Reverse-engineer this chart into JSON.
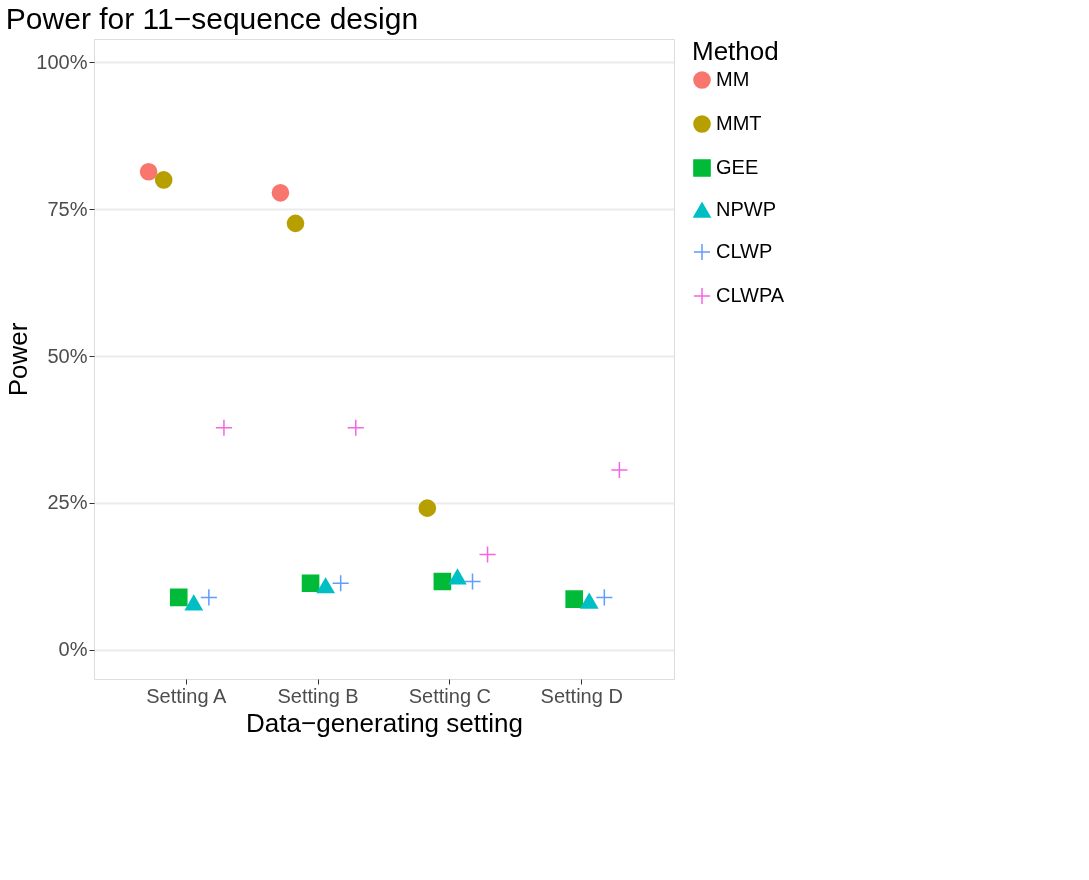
{
  "chart_data": {
    "type": "scatter",
    "title": "Power for 11−sequence design",
    "xlabel": "Data−generating setting",
    "ylabel": "Power",
    "legend_title": "Method",
    "legend": "right",
    "grid": "y",
    "categories": [
      "Setting A",
      "Setting B",
      "Setting C",
      "Setting D"
    ],
    "ylim": [
      -5,
      104
    ],
    "yticks": [
      {
        "value": 0,
        "label": "0%"
      },
      {
        "value": 25,
        "label": "25%"
      },
      {
        "value": 50,
        "label": "50%"
      },
      {
        "value": 75,
        "label": "75%"
      },
      {
        "value": 100,
        "label": "100%"
      }
    ],
    "series": [
      {
        "name": "MM",
        "color": "#f8766d",
        "marker": "circle",
        "values": [
          81.4,
          77.8,
          null,
          null
        ]
      },
      {
        "name": "MMT",
        "color": "#b79f00",
        "marker": "circle",
        "values": [
          80.0,
          72.6,
          24.1,
          null
        ]
      },
      {
        "name": "GEE",
        "color": "#00ba38",
        "marker": "square",
        "values": [
          8.9,
          11.3,
          11.6,
          8.6
        ]
      },
      {
        "name": "NPWP",
        "color": "#00bfc4",
        "marker": "triangle",
        "values": [
          8.0,
          10.9,
          12.4,
          8.3
        ]
      },
      {
        "name": "CLWP",
        "color": "#619cff",
        "marker": "cross",
        "values": [
          8.9,
          11.3,
          11.6,
          8.9
        ]
      },
      {
        "name": "CLWPA",
        "color": "#f564e3",
        "marker": "cross",
        "values": [
          37.8,
          37.8,
          16.2,
          30.6
        ]
      }
    ]
  }
}
